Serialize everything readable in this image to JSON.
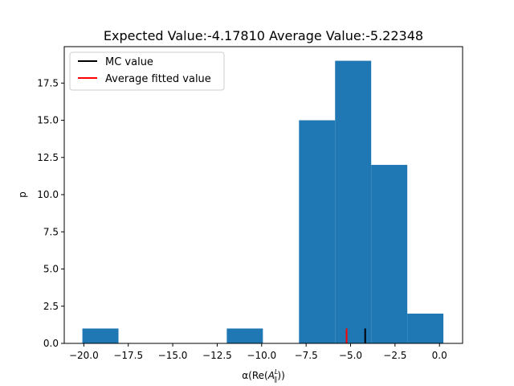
{
  "chart_data": {
    "type": "bar",
    "title": "Expected Value:-4.17810 Average Value:-5.22348",
    "xlabel": "α(Re(A_∥^L))",
    "xlabel_parts": {
      "prefix": "α(Re(",
      "base": "A",
      "sup": "L",
      "sub": "∥",
      "suffix": "))"
    },
    "ylabel": "p",
    "xlim": [
      -21.1,
      1.3
    ],
    "ylim": [
      0,
      19.95
    ],
    "xticks": [
      -20.0,
      -17.5,
      -15.0,
      -12.5,
      -10.0,
      -7.5,
      -5.0,
      -2.5,
      0.0
    ],
    "xtick_labels": [
      "−20.0",
      "−17.5",
      "−15.0",
      "−12.5",
      "−10.0",
      "−7.5",
      "−5.0",
      "−2.5",
      "0.0"
    ],
    "yticks": [
      0.0,
      2.5,
      5.0,
      7.5,
      10.0,
      12.5,
      15.0,
      17.5
    ],
    "ytick_labels": [
      "0.0",
      "2.5",
      "5.0",
      "7.5",
      "10.0",
      "12.5",
      "15.0",
      "17.5"
    ],
    "bin_edges": [
      -20.08,
      -18.05,
      -16.02,
      -13.99,
      -11.96,
      -9.93,
      -7.9,
      -5.87,
      -3.84,
      -1.81,
      0.22
    ],
    "counts": [
      1,
      0,
      0,
      0,
      1,
      0,
      15,
      19,
      12,
      2
    ],
    "bar_color": "#1f77b4",
    "vlines": [
      {
        "name": "MC value",
        "x": -4.1781,
        "height": 1,
        "color": "#000000"
      },
      {
        "name": "Average fitted value",
        "x": -5.22348,
        "height": 1,
        "color": "#ff0000"
      }
    ],
    "legend": {
      "placement": "upper left",
      "entries": [
        {
          "label": "MC value",
          "color": "#000000"
        },
        {
          "label": "Average fitted value",
          "color": "#ff0000"
        }
      ]
    },
    "grid": false
  }
}
